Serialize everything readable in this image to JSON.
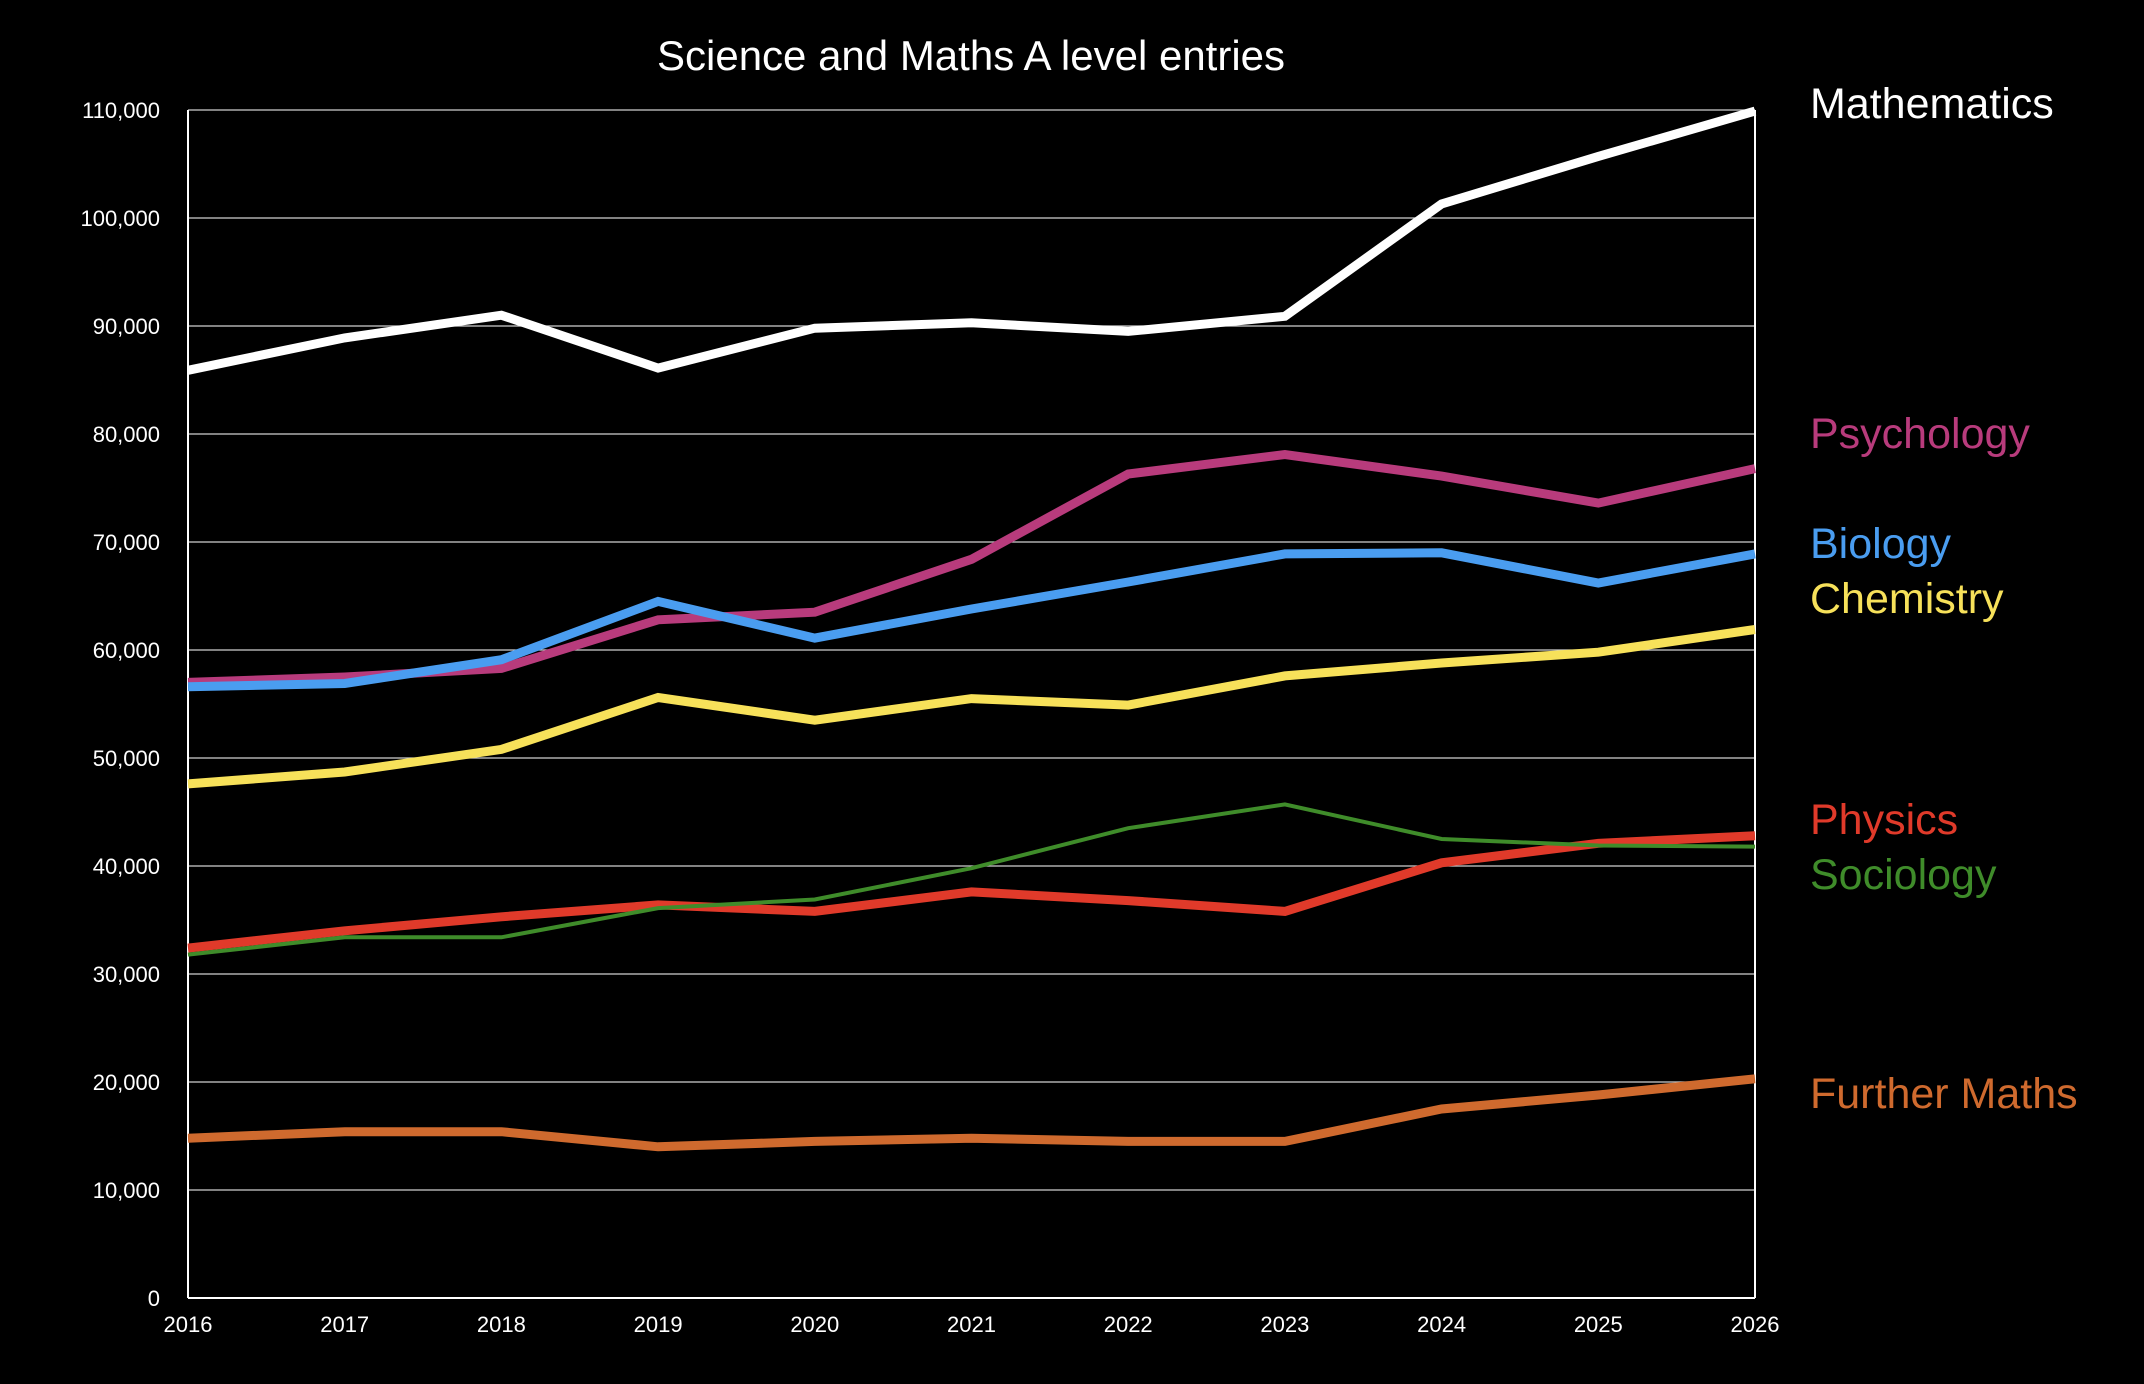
{
  "chart_data": {
    "type": "line",
    "title": "Science and Maths A level entries",
    "xlabel": "",
    "ylabel": "",
    "x": [
      "2016",
      "2017",
      "2018",
      "2019",
      "2020",
      "2021",
      "2022",
      "2023",
      "2024",
      "2025",
      "2026"
    ],
    "ylim": [
      0,
      110000
    ],
    "yticks": [
      "0",
      "10,000",
      "20,000",
      "30,000",
      "40,000",
      "50,000",
      "60,000",
      "70,000",
      "80,000",
      "90,000",
      "100,000",
      "110,000"
    ],
    "grid": true,
    "legend_placement": "right",
    "series": [
      {
        "name": "Mathematics",
        "color": "#ffffff",
        "width": "thick",
        "values": [
          85900,
          88900,
          91000,
          86100,
          89800,
          90300,
          89500,
          90900,
          101300,
          105700,
          109900
        ]
      },
      {
        "name": "Psychology",
        "color": "#b83b7c",
        "width": "thick",
        "values": [
          57000,
          57500,
          58300,
          62800,
          63500,
          68400,
          76300,
          78100,
          76100,
          73600,
          76800
        ]
      },
      {
        "name": "Biology",
        "color": "#4a9df0",
        "width": "thick",
        "values": [
          56600,
          56900,
          59100,
          64500,
          61100,
          63800,
          66300,
          68900,
          69000,
          66200,
          68900
        ]
      },
      {
        "name": "Chemistry",
        "color": "#f7e15a",
        "width": "thick",
        "values": [
          47600,
          48700,
          50800,
          55600,
          53500,
          55500,
          54900,
          57600,
          58800,
          59800,
          61900
        ]
      },
      {
        "name": "Physics",
        "color": "#e03a2a",
        "width": "thick",
        "values": [
          32400,
          34000,
          35300,
          36400,
          35800,
          37600,
          36800,
          35800,
          40300,
          42100,
          42800
        ]
      },
      {
        "name": "Sociology",
        "color": "#3f8c2a",
        "width": "thin",
        "values": [
          31800,
          33400,
          33400,
          36100,
          36900,
          39800,
          43500,
          45700,
          42500,
          41900,
          41800
        ]
      },
      {
        "name": "Further Maths",
        "color": "#cf6a2e",
        "width": "thick",
        "values": [
          14800,
          15400,
          15400,
          14000,
          14500,
          14800,
          14500,
          14500,
          17500,
          18800,
          20300
        ]
      }
    ]
  }
}
